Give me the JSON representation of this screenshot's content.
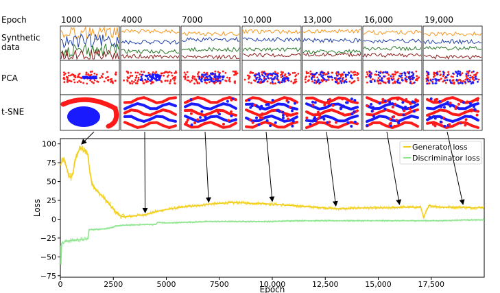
{
  "row_labels": {
    "epoch": "Epoch",
    "synthetic_line1": "Synthetic",
    "synthetic_line2": "data",
    "pca": "PCA",
    "tsne": "t-SNE"
  },
  "snapshot_epochs": [
    "1000",
    "4000",
    "7000",
    "10,000",
    "13,000",
    "16,000",
    "19,000"
  ],
  "chart_data": {
    "type": "line",
    "title": "",
    "xlabel": "Epoch",
    "ylabel": "Loss",
    "xlim": [
      0,
      20000
    ],
    "ylim": [
      -77,
      107
    ],
    "x_ticks": [
      0,
      2500,
      5000,
      7500,
      10000,
      12500,
      15000,
      17500
    ],
    "x_tick_labels": [
      "0",
      "2500",
      "5000",
      "7500",
      "10,000",
      "12,500",
      "15,000",
      "17,500"
    ],
    "y_ticks": [
      100,
      75,
      50,
      25,
      0,
      -25,
      -50,
      -75
    ],
    "y_tick_labels": [
      "100",
      "75",
      "50",
      "25",
      "0",
      "−25",
      "−50",
      "−75"
    ],
    "legend_position": "top-right",
    "series": [
      {
        "name": "Generator loss",
        "color": "#f2cf1d",
        "points": [
          [
            0,
            72
          ],
          [
            150,
            80
          ],
          [
            300,
            68
          ],
          [
            400,
            58
          ],
          [
            500,
            55
          ],
          [
            600,
            62
          ],
          [
            700,
            78
          ],
          [
            800,
            88
          ],
          [
            900,
            92
          ],
          [
            1000,
            95
          ],
          [
            1100,
            90
          ],
          [
            1200,
            92
          ],
          [
            1300,
            85
          ],
          [
            1400,
            60
          ],
          [
            1500,
            48
          ],
          [
            1700,
            38
          ],
          [
            2000,
            30
          ],
          [
            2300,
            20
          ],
          [
            2600,
            10
          ],
          [
            2800,
            5
          ],
          [
            3000,
            3
          ],
          [
            3300,
            4
          ],
          [
            3600,
            5
          ],
          [
            4000,
            6
          ],
          [
            4500,
            10
          ],
          [
            5000,
            13
          ],
          [
            5500,
            15
          ],
          [
            6000,
            17
          ],
          [
            6500,
            18
          ],
          [
            7000,
            20
          ],
          [
            7500,
            21
          ],
          [
            8000,
            22
          ],
          [
            8500,
            22
          ],
          [
            9000,
            21
          ],
          [
            9500,
            21
          ],
          [
            10000,
            20
          ],
          [
            10500,
            19
          ],
          [
            11000,
            18
          ],
          [
            11500,
            17
          ],
          [
            12000,
            16
          ],
          [
            12500,
            15
          ],
          [
            13000,
            14
          ],
          [
            13500,
            14
          ],
          [
            14000,
            15
          ],
          [
            14500,
            15
          ],
          [
            15000,
            15
          ],
          [
            15500,
            15
          ],
          [
            16000,
            16
          ],
          [
            16500,
            16
          ],
          [
            17000,
            16
          ],
          [
            17150,
            2
          ],
          [
            17250,
            10
          ],
          [
            17400,
            18
          ],
          [
            17700,
            17
          ],
          [
            18000,
            16
          ],
          [
            18500,
            16
          ],
          [
            19000,
            16
          ],
          [
            19500,
            15
          ],
          [
            20000,
            16
          ]
        ]
      },
      {
        "name": "Discriminator loss",
        "color": "#90e690",
        "points": [
          [
            0,
            -35
          ],
          [
            30,
            -60
          ],
          [
            60,
            -32
          ],
          [
            300,
            -29
          ],
          [
            600,
            -28
          ],
          [
            1000,
            -27
          ],
          [
            1300,
            -26
          ],
          [
            1350,
            -14
          ],
          [
            2000,
            -13
          ],
          [
            2500,
            -11
          ],
          [
            2600,
            -9
          ],
          [
            3000,
            -8
          ],
          [
            4000,
            -7
          ],
          [
            4500,
            -7
          ],
          [
            4600,
            -4
          ],
          [
            5000,
            -5
          ],
          [
            6000,
            -4
          ],
          [
            7000,
            -3
          ],
          [
            8000,
            -3
          ],
          [
            9000,
            -3
          ],
          [
            10000,
            -3
          ],
          [
            11000,
            -2
          ],
          [
            12000,
            -2
          ],
          [
            13000,
            -2
          ],
          [
            14000,
            -2
          ],
          [
            15000,
            -2
          ],
          [
            16000,
            -2
          ],
          [
            17000,
            -2
          ],
          [
            18000,
            -2
          ],
          [
            19000,
            -1
          ],
          [
            20000,
            -1
          ]
        ]
      }
    ],
    "arrows": [
      {
        "target_epoch": 1000,
        "target_loss": 96
      },
      {
        "target_epoch": 4000,
        "target_loss": 5
      },
      {
        "target_epoch": 7000,
        "target_loss": 19
      },
      {
        "target_epoch": 10000,
        "target_loss": 20
      },
      {
        "target_epoch": 13000,
        "target_loss": 14
      },
      {
        "target_epoch": 16000,
        "target_loss": 16
      },
      {
        "target_epoch": 19000,
        "target_loss": 16
      }
    ]
  }
}
